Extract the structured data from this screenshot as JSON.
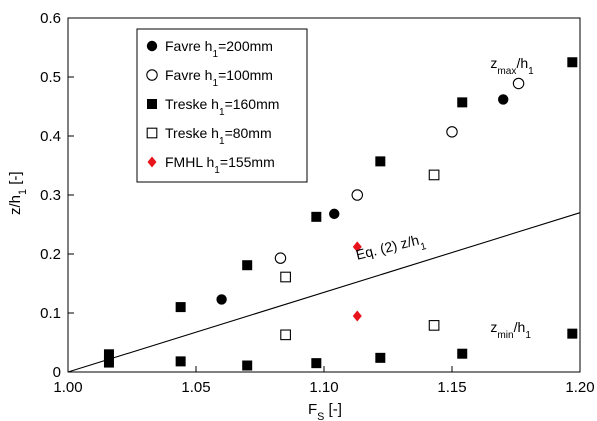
{
  "chart_data": {
    "type": "scatter",
    "title": "",
    "xlabel": {
      "main": "F",
      "sub": "S",
      "rest": " [-]"
    },
    "ylabel": {
      "main": "z/h",
      "sub": "1",
      "rest": " [-]"
    },
    "xlim": [
      1.0,
      1.2
    ],
    "ylim": [
      0.0,
      0.6
    ],
    "xticks": [
      "1.00",
      "1.05",
      "1.10",
      "1.15",
      "1.20"
    ],
    "yticks": [
      "0",
      "0.1",
      "0.2",
      "0.3",
      "0.4",
      "0.5",
      "0.6"
    ],
    "legend_position": "top-left",
    "series": [
      {
        "name": "Favre h1=200mm",
        "label": {
          "main": "Favre h",
          "sub": "1",
          "rest": "=200mm"
        },
        "marker": "filled-circle",
        "color": "#000000",
        "points": [
          [
            1.06,
            0.123
          ],
          [
            1.104,
            0.268
          ],
          [
            1.17,
            0.462
          ]
        ]
      },
      {
        "name": "Favre h1=100mm",
        "label": {
          "main": "Favre h",
          "sub": "1",
          "rest": "=100mm"
        },
        "marker": "open-circle",
        "color": "#000000",
        "points": [
          [
            1.083,
            0.193
          ],
          [
            1.113,
            0.3
          ],
          [
            1.15,
            0.407
          ],
          [
            1.176,
            0.489
          ]
        ]
      },
      {
        "name": "Treske h1=160mm",
        "label": {
          "main": "Treske h",
          "sub": "1",
          "rest": "=160mm"
        },
        "marker": "filled-square",
        "color": "#000000",
        "points": [
          [
            1.016,
            0.03
          ],
          [
            1.044,
            0.11
          ],
          [
            1.07,
            0.181
          ],
          [
            1.097,
            0.263
          ],
          [
            1.122,
            0.357
          ],
          [
            1.154,
            0.457
          ],
          [
            1.197,
            0.525
          ],
          [
            1.016,
            0.016
          ],
          [
            1.044,
            0.018
          ],
          [
            1.07,
            0.011
          ],
          [
            1.097,
            0.015
          ],
          [
            1.122,
            0.024
          ],
          [
            1.154,
            0.031
          ],
          [
            1.197,
            0.065
          ]
        ]
      },
      {
        "name": "Treske h1=80mm",
        "label": {
          "main": "Treske h",
          "sub": "1",
          "rest": "=80mm"
        },
        "marker": "open-square",
        "color": "#000000",
        "points": [
          [
            1.085,
            0.161
          ],
          [
            1.143,
            0.334
          ],
          [
            1.085,
            0.063
          ],
          [
            1.143,
            0.079
          ]
        ]
      },
      {
        "name": "FMHL h1=155mm",
        "label": {
          "main": "FMHL h",
          "sub": "1",
          "rest": "=155mm"
        },
        "marker": "diamond",
        "color": "#e8141b",
        "points": [
          [
            1.113,
            0.212
          ],
          [
            1.113,
            0.095
          ]
        ]
      }
    ],
    "lines": [
      {
        "name": "Eq. (2)",
        "x": [
          1.0,
          1.2
        ],
        "y": [
          0.0,
          0.27
        ]
      }
    ],
    "annotations": [
      {
        "id": "zmax",
        "parts": {
          "main": "z",
          "sub": "max",
          "rest": "/h",
          "sub2": "1"
        },
        "x": 1.165,
        "y": 0.515
      },
      {
        "id": "eq2",
        "text": "Eq. (2)   z/h",
        "sub": "1",
        "x": 1.113,
        "y": 0.19,
        "rotate": -14
      },
      {
        "id": "zmin",
        "parts": {
          "main": "z",
          "sub": "min",
          "rest": "/h",
          "sub2": "1"
        },
        "x": 1.165,
        "y": 0.068
      }
    ]
  }
}
